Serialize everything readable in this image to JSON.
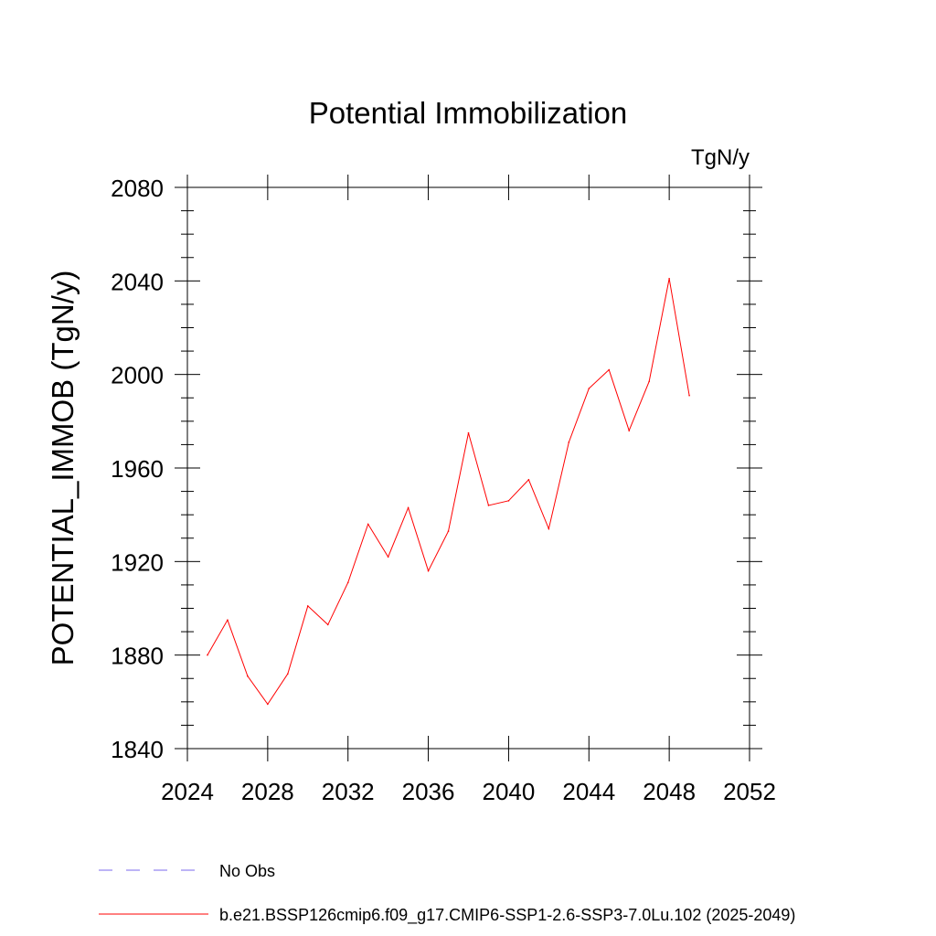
{
  "chart_data": {
    "type": "line",
    "title": "Potential Immobilization",
    "units": "TgN/y",
    "ylabel": "POTENTIAL_IMMOB  (TgN/y)",
    "xlabel": "",
    "xlim": [
      2024,
      2052
    ],
    "ylim": [
      1840,
      2080
    ],
    "xticks": [
      2024,
      2028,
      2032,
      2036,
      2040,
      2044,
      2048,
      2052
    ],
    "yticks": [
      1840,
      1880,
      1920,
      1960,
      2000,
      2040,
      2080
    ],
    "grid": false,
    "x": [
      2025,
      2026,
      2027,
      2028,
      2029,
      2030,
      2031,
      2032,
      2033,
      2034,
      2035,
      2036,
      2037,
      2038,
      2039,
      2040,
      2041,
      2042,
      2043,
      2044,
      2045,
      2046,
      2047,
      2048,
      2049
    ],
    "series": [
      {
        "name": "b.e21.BSSP126cmip6.f09_g17.CMIP6-SSP1-2.6-SSP3-7.0Lu.102 (2025-2049)",
        "color": "#ff0000",
        "values": [
          1880,
          1895,
          1871,
          1859,
          1872,
          1901,
          1893,
          1911,
          1936,
          1922,
          1943,
          1916,
          1933,
          1975,
          1944,
          1946,
          1955,
          1934,
          1971,
          1994,
          2002,
          1976,
          1997,
          2041,
          1991
        ]
      }
    ],
    "legend": [
      {
        "label": "No Obs",
        "color": "#7b68ee",
        "style": "dashed"
      },
      {
        "label": "b.e21.BSSP126cmip6.f09_g17.CMIP6-SSP1-2.6-SSP3-7.0Lu.102 (2025-2049)",
        "color": "#ff0000",
        "style": "solid"
      }
    ],
    "legend_position": "bottom-left"
  }
}
